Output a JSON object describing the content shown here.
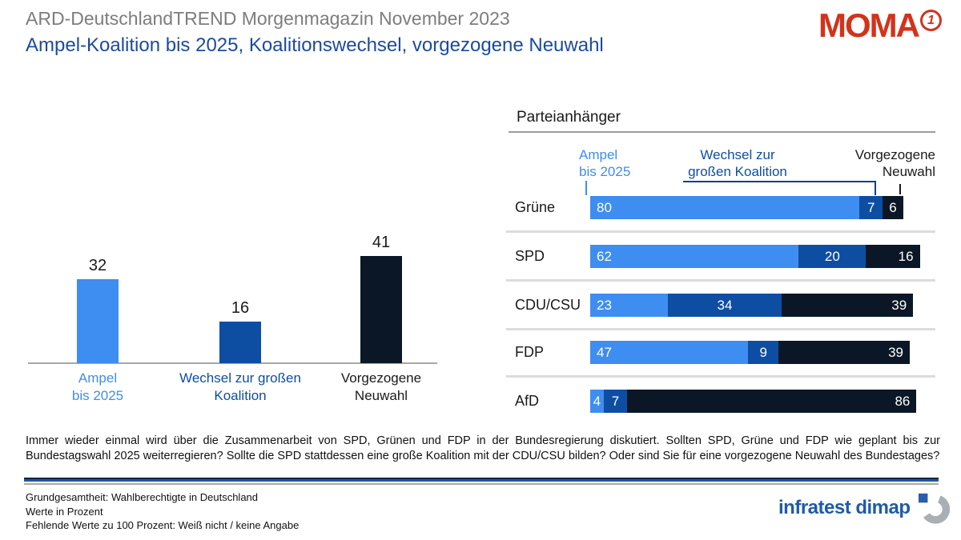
{
  "header": {
    "title": "ARD-DeutschlandTREND Morgenmagazin November 2023",
    "subtitle": "Ampel-Koalition bis 2025, Koalitionswechsel, vorgezogene Neuwahl",
    "moma_label": "MOMA",
    "moma_badge": "1"
  },
  "chart_data": [
    {
      "type": "bar",
      "orientation": "vertical",
      "categories": [
        "Ampel bis 2025",
        "Wechsel zur großen Koalition",
        "Vorgezogene Neuwahl"
      ],
      "category_lines": [
        [
          "Ampel",
          "bis 2025"
        ],
        [
          "Wechsel zur großen",
          "Koalition"
        ],
        [
          "Vorgezogene",
          "Neuwahl"
        ]
      ],
      "values": [
        32,
        16,
        41
      ],
      "bar_colors": [
        "#3e8df1",
        "#0d4ea3",
        "#0b1726"
      ],
      "label_colors": [
        "#3e8df1",
        "#0d4ea3",
        "#1a1a1a"
      ],
      "ylim": [
        0,
        45
      ],
      "unit": "percent",
      "value_labels_shown": true,
      "grid": false
    },
    {
      "type": "bar",
      "orientation": "horizontal-stacked",
      "title": "Parteianhänger",
      "categories": [
        "Grüne",
        "SPD",
        "CDU/CSU",
        "FDP",
        "AfD"
      ],
      "series": [
        {
          "name": "Ampel bis 2025",
          "legend_lines": [
            "Ampel",
            "bis 2025"
          ],
          "color": "#3e8df1",
          "values": [
            80,
            62,
            23,
            47,
            4
          ]
        },
        {
          "name": "Wechsel zur großen Koalition",
          "legend_lines": [
            "Wechsel zur",
            "großen Koalition"
          ],
          "color": "#0d4ea3",
          "values": [
            7,
            20,
            34,
            9,
            7
          ]
        },
        {
          "name": "Vorgezogene Neuwahl",
          "legend_lines": [
            "Vorgezogene",
            "Neuwahl"
          ],
          "color": "#0b1726",
          "values": [
            6,
            16,
            39,
            39,
            86
          ]
        }
      ],
      "xlim": [
        0,
        100
      ],
      "unit": "percent",
      "legend_position": "top",
      "grid": false
    }
  ],
  "question": "Immer wieder einmal wird über die Zusammenarbeit von SPD, Grünen und FDP in der Bundesregierung diskutiert. Sollten SPD, Grüne und FDP wie geplant bis zur Bundestagswahl 2025 weiterregieren? Sollte die SPD stattdessen eine große Koalition mit der CDU/CSU bilden? Oder sind Sie für eine vorgezogene Neuwahl des Bundestages?",
  "footnotes": [
    "Grundgesamtheit: Wahlberechtigte in Deutschland",
    "Werte in Prozent",
    "Fehlende Werte zu 100 Prozent: Weiß nicht / keine Angabe"
  ],
  "branding": {
    "agency": "infratest dimap"
  },
  "colors": {
    "light_blue": "#3e8df1",
    "mid_blue": "#0d4ea3",
    "navy": "#0b1726",
    "title_gray": "#7d7d7d",
    "subtitle_blue": "#1b4a9e",
    "moma_red": "#d2331c",
    "dimap_blue": "#1e5ba8"
  }
}
